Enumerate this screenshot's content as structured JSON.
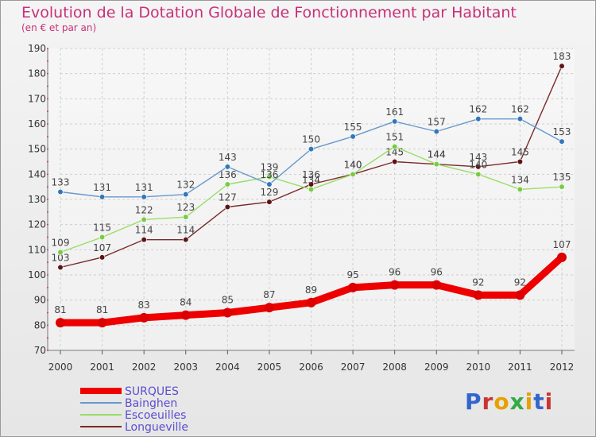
{
  "title": "Evolution de la Dotation Globale de Fonctionnement par Habitant",
  "subtitle": "(en € et par an)",
  "logo_text": "Proxiti",
  "chart_data": {
    "type": "line",
    "title": "Evolution de la Dotation Globale de Fonctionnement par Habitant",
    "subtitle": "(en € et par an)",
    "x": [
      "2000",
      "2001",
      "2002",
      "2003",
      "2004",
      "2005",
      "2006",
      "2007",
      "2008",
      "2009",
      "2010",
      "2011",
      "2012"
    ],
    "ylim": [
      70,
      190
    ],
    "yticks": [
      70,
      80,
      90,
      100,
      110,
      120,
      130,
      140,
      150,
      160,
      170,
      180,
      190
    ],
    "grid": true,
    "legend_position": "bottom-left",
    "series": [
      {
        "name": "SURQUES",
        "color": "#ee0000",
        "point_color": "#dd0000",
        "values": [
          81,
          81,
          83,
          84,
          85,
          87,
          89,
          95,
          96,
          96,
          92,
          92,
          107
        ],
        "labels": [
          "81",
          "81",
          "83",
          "84",
          "85",
          "87",
          "89",
          "95",
          "96",
          "96",
          "92",
          "92",
          "107"
        ]
      },
      {
        "name": "Bainghen",
        "color": "#6699cc",
        "point_color": "#3377bb",
        "values": [
          133,
          131,
          131,
          132,
          143,
          136,
          150,
          155,
          161,
          157,
          162,
          162,
          153
        ],
        "labels": [
          "133",
          "131",
          "131",
          "132",
          "143",
          "136",
          "150",
          "155",
          "161",
          "157",
          "162",
          "162",
          "153"
        ]
      },
      {
        "name": "Escoeuilles",
        "color": "#99dd66",
        "point_color": "#77cc44",
        "values": [
          109,
          115,
          122,
          123,
          136,
          139,
          134,
          140,
          151,
          144,
          140,
          134,
          135
        ],
        "labels": [
          "109",
          "115",
          "122",
          "123",
          "136",
          "139",
          "134",
          "140",
          "151",
          "144",
          "140",
          "134",
          "135"
        ]
      },
      {
        "name": "Longueville",
        "color": "#7a2a2a",
        "point_color": "#5e1414",
        "values": [
          103,
          107,
          114,
          114,
          127,
          129,
          136,
          140,
          145,
          144,
          143,
          145,
          183
        ],
        "labels": [
          "103",
          "107",
          "114",
          "114",
          "127",
          "129",
          "136",
          "140",
          "145",
          "144",
          "143",
          "145",
          "183"
        ]
      }
    ]
  }
}
